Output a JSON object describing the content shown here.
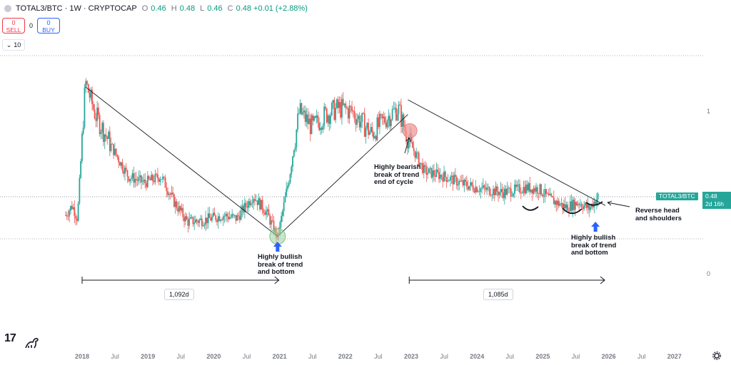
{
  "header": {
    "symbol": "TOTAL3/BTC · 1W · CRYPTOCAP",
    "ohlc": [
      {
        "k": "O",
        "v": "0.46"
      },
      {
        "k": "H",
        "v": "0.48"
      },
      {
        "k": "L",
        "v": "0.46"
      },
      {
        "k": "C",
        "v": "0.48 +0.01 (+2.88%)"
      }
    ]
  },
  "trade": {
    "sell_count": "0",
    "sell_label": "SELL",
    "spread": "0",
    "buy_count": "0",
    "buy_label": "BUY"
  },
  "collapse_label": "10",
  "price_tag": {
    "symbol": "TOTAL3/BTC",
    "price": "0.48",
    "countdown": "2d 16h"
  },
  "annotations": {
    "bottom_2020": [
      "Highly bullish",
      "break of trend",
      "and bottom"
    ],
    "top_2022": [
      "Highly bearish",
      "break of trend",
      "end of cycle"
    ],
    "bottom_2025": [
      "Highly bullish",
      "break of trend",
      "and bottom"
    ],
    "inv_hs": [
      "Reverse head",
      "and shoulders"
    ]
  },
  "durations": {
    "first": "1,092d",
    "second": "1,085d"
  },
  "colors": {
    "up": "#26a69a",
    "down": "#ef5350",
    "bull_circle": "#a5d6a7",
    "bear_circle": "#ef9a9a",
    "arrow": "#2962ff"
  },
  "chart_data": {
    "type": "candlestick",
    "title": "TOTAL3/BTC",
    "timeframe": "1W",
    "y_ticks": [
      "1",
      "0"
    ],
    "x_ticks": [
      "2018",
      "Jul",
      "2019",
      "Jul",
      "2020",
      "Jul",
      "2021",
      "Jul",
      "2022",
      "Jul",
      "2023",
      "Jul",
      "2024",
      "Jul",
      "2025",
      "Jul",
      "2026",
      "Jul",
      "2027"
    ],
    "last_price": 0.48,
    "points": [
      {
        "x": "2017.75",
        "y": 0.36
      },
      {
        "x": "2017.85",
        "y": 0.42
      },
      {
        "x": "2017.93",
        "y": 0.34
      },
      {
        "x": "2018.05",
        "y": 1.18
      },
      {
        "x": "2018.2",
        "y": 0.98
      },
      {
        "x": "2018.45",
        "y": 0.78
      },
      {
        "x": "2018.7",
        "y": 0.6
      },
      {
        "x": "2018.95",
        "y": 0.56
      },
      {
        "x": "2019.2",
        "y": 0.6
      },
      {
        "x": "2019.4",
        "y": 0.44
      },
      {
        "x": "2019.6",
        "y": 0.32
      },
      {
        "x": "2019.85",
        "y": 0.33
      },
      {
        "x": "2020.15",
        "y": 0.36
      },
      {
        "x": "2020.35",
        "y": 0.34
      },
      {
        "x": "2020.6",
        "y": 0.48
      },
      {
        "x": "2020.8",
        "y": 0.38
      },
      {
        "x": "2020.97",
        "y": 0.22
      },
      {
        "x": "2021.15",
        "y": 0.6
      },
      {
        "x": "2021.3",
        "y": 1.0
      },
      {
        "x": "2021.5",
        "y": 0.9
      },
      {
        "x": "2021.7",
        "y": 0.98
      },
      {
        "x": "2021.9",
        "y": 1.02
      },
      {
        "x": "2022.1",
        "y": 1.0
      },
      {
        "x": "2022.4",
        "y": 0.86
      },
      {
        "x": "2022.6",
        "y": 0.95
      },
      {
        "x": "2022.8",
        "y": 1.02
      },
      {
        "x": "2022.95",
        "y": 0.83
      },
      {
        "x": "2023.2",
        "y": 0.63
      },
      {
        "x": "2023.5",
        "y": 0.6
      },
      {
        "x": "2023.8",
        "y": 0.55
      },
      {
        "x": "2024.1",
        "y": 0.52
      },
      {
        "x": "2024.4",
        "y": 0.5
      },
      {
        "x": "2024.75",
        "y": 0.53
      },
      {
        "x": "2024.95",
        "y": 0.52
      },
      {
        "x": "2025.1",
        "y": 0.46
      },
      {
        "x": "2025.35",
        "y": 0.41
      },
      {
        "x": "2025.55",
        "y": 0.44
      },
      {
        "x": "2025.7",
        "y": 0.4
      },
      {
        "x": "2025.85",
        "y": 0.48
      }
    ],
    "trendlines": [
      {
        "from": {
          "x": "2018.05",
          "y": 1.15
        },
        "to": {
          "x": "2020.97",
          "y": 0.23
        }
      },
      {
        "from": {
          "x": "2020.97",
          "y": 0.23
        },
        "to": {
          "x": "2022.95",
          "y": 0.98
        }
      },
      {
        "from": {
          "x": "2022.95",
          "y": 1.07
        },
        "to": {
          "x": "2025.95",
          "y": 0.42
        }
      }
    ]
  }
}
